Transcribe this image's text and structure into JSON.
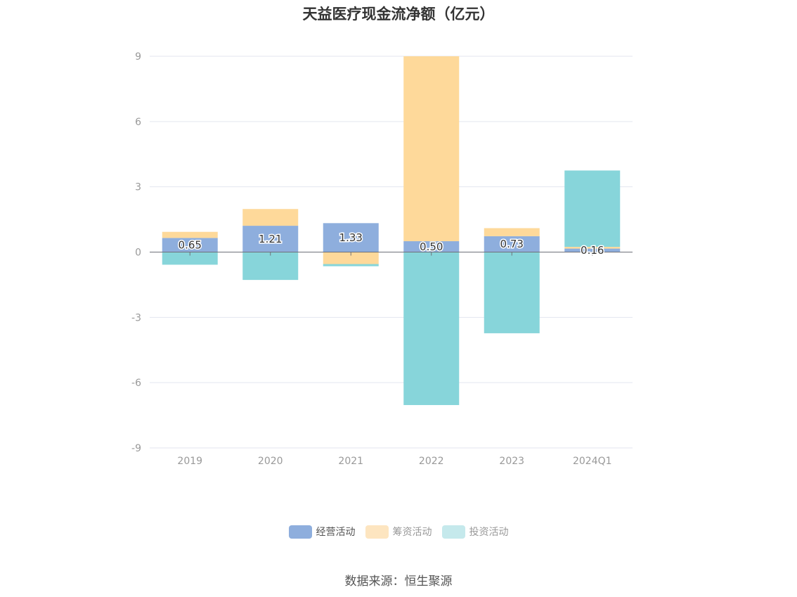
{
  "chart_data": {
    "type": "bar",
    "title": "天益医疗现金流净额（亿元）",
    "categories": [
      "2019",
      "2020",
      "2021",
      "2022",
      "2023",
      "2024Q1"
    ],
    "ylim": [
      -9,
      9
    ],
    "yticks": [
      "9",
      "6",
      "3",
      "0",
      "-3",
      "-6",
      "-9"
    ],
    "grid": true,
    "legend_position": "bottom",
    "stacked": true,
    "series": [
      {
        "name": "经营活动",
        "color": "#8eaedd",
        "values": [
          0.65,
          1.21,
          1.33,
          0.5,
          0.73,
          0.16
        ],
        "labels": [
          "0.65",
          "1.21",
          "1.33",
          "0.50",
          "0.73",
          "0.16"
        ]
      },
      {
        "name": "筹资活动",
        "color": "#fed99a",
        "values": [
          0.28,
          0.77,
          -0.55,
          8.5,
          0.37,
          0.08
        ]
      },
      {
        "name": "投资活动",
        "color": "#87d5da",
        "values": [
          -0.58,
          -1.28,
          -0.1,
          -7.03,
          -3.73,
          3.51
        ]
      }
    ]
  },
  "legend": [
    {
      "label": "经营活动",
      "color": "#8eaedd",
      "active": true
    },
    {
      "label": "筹资活动",
      "color": "#fde5c0",
      "active": false
    },
    {
      "label": "投资活动",
      "color": "#c5e9ec",
      "active": false
    }
  ],
  "source": "数据来源：恒生聚源"
}
